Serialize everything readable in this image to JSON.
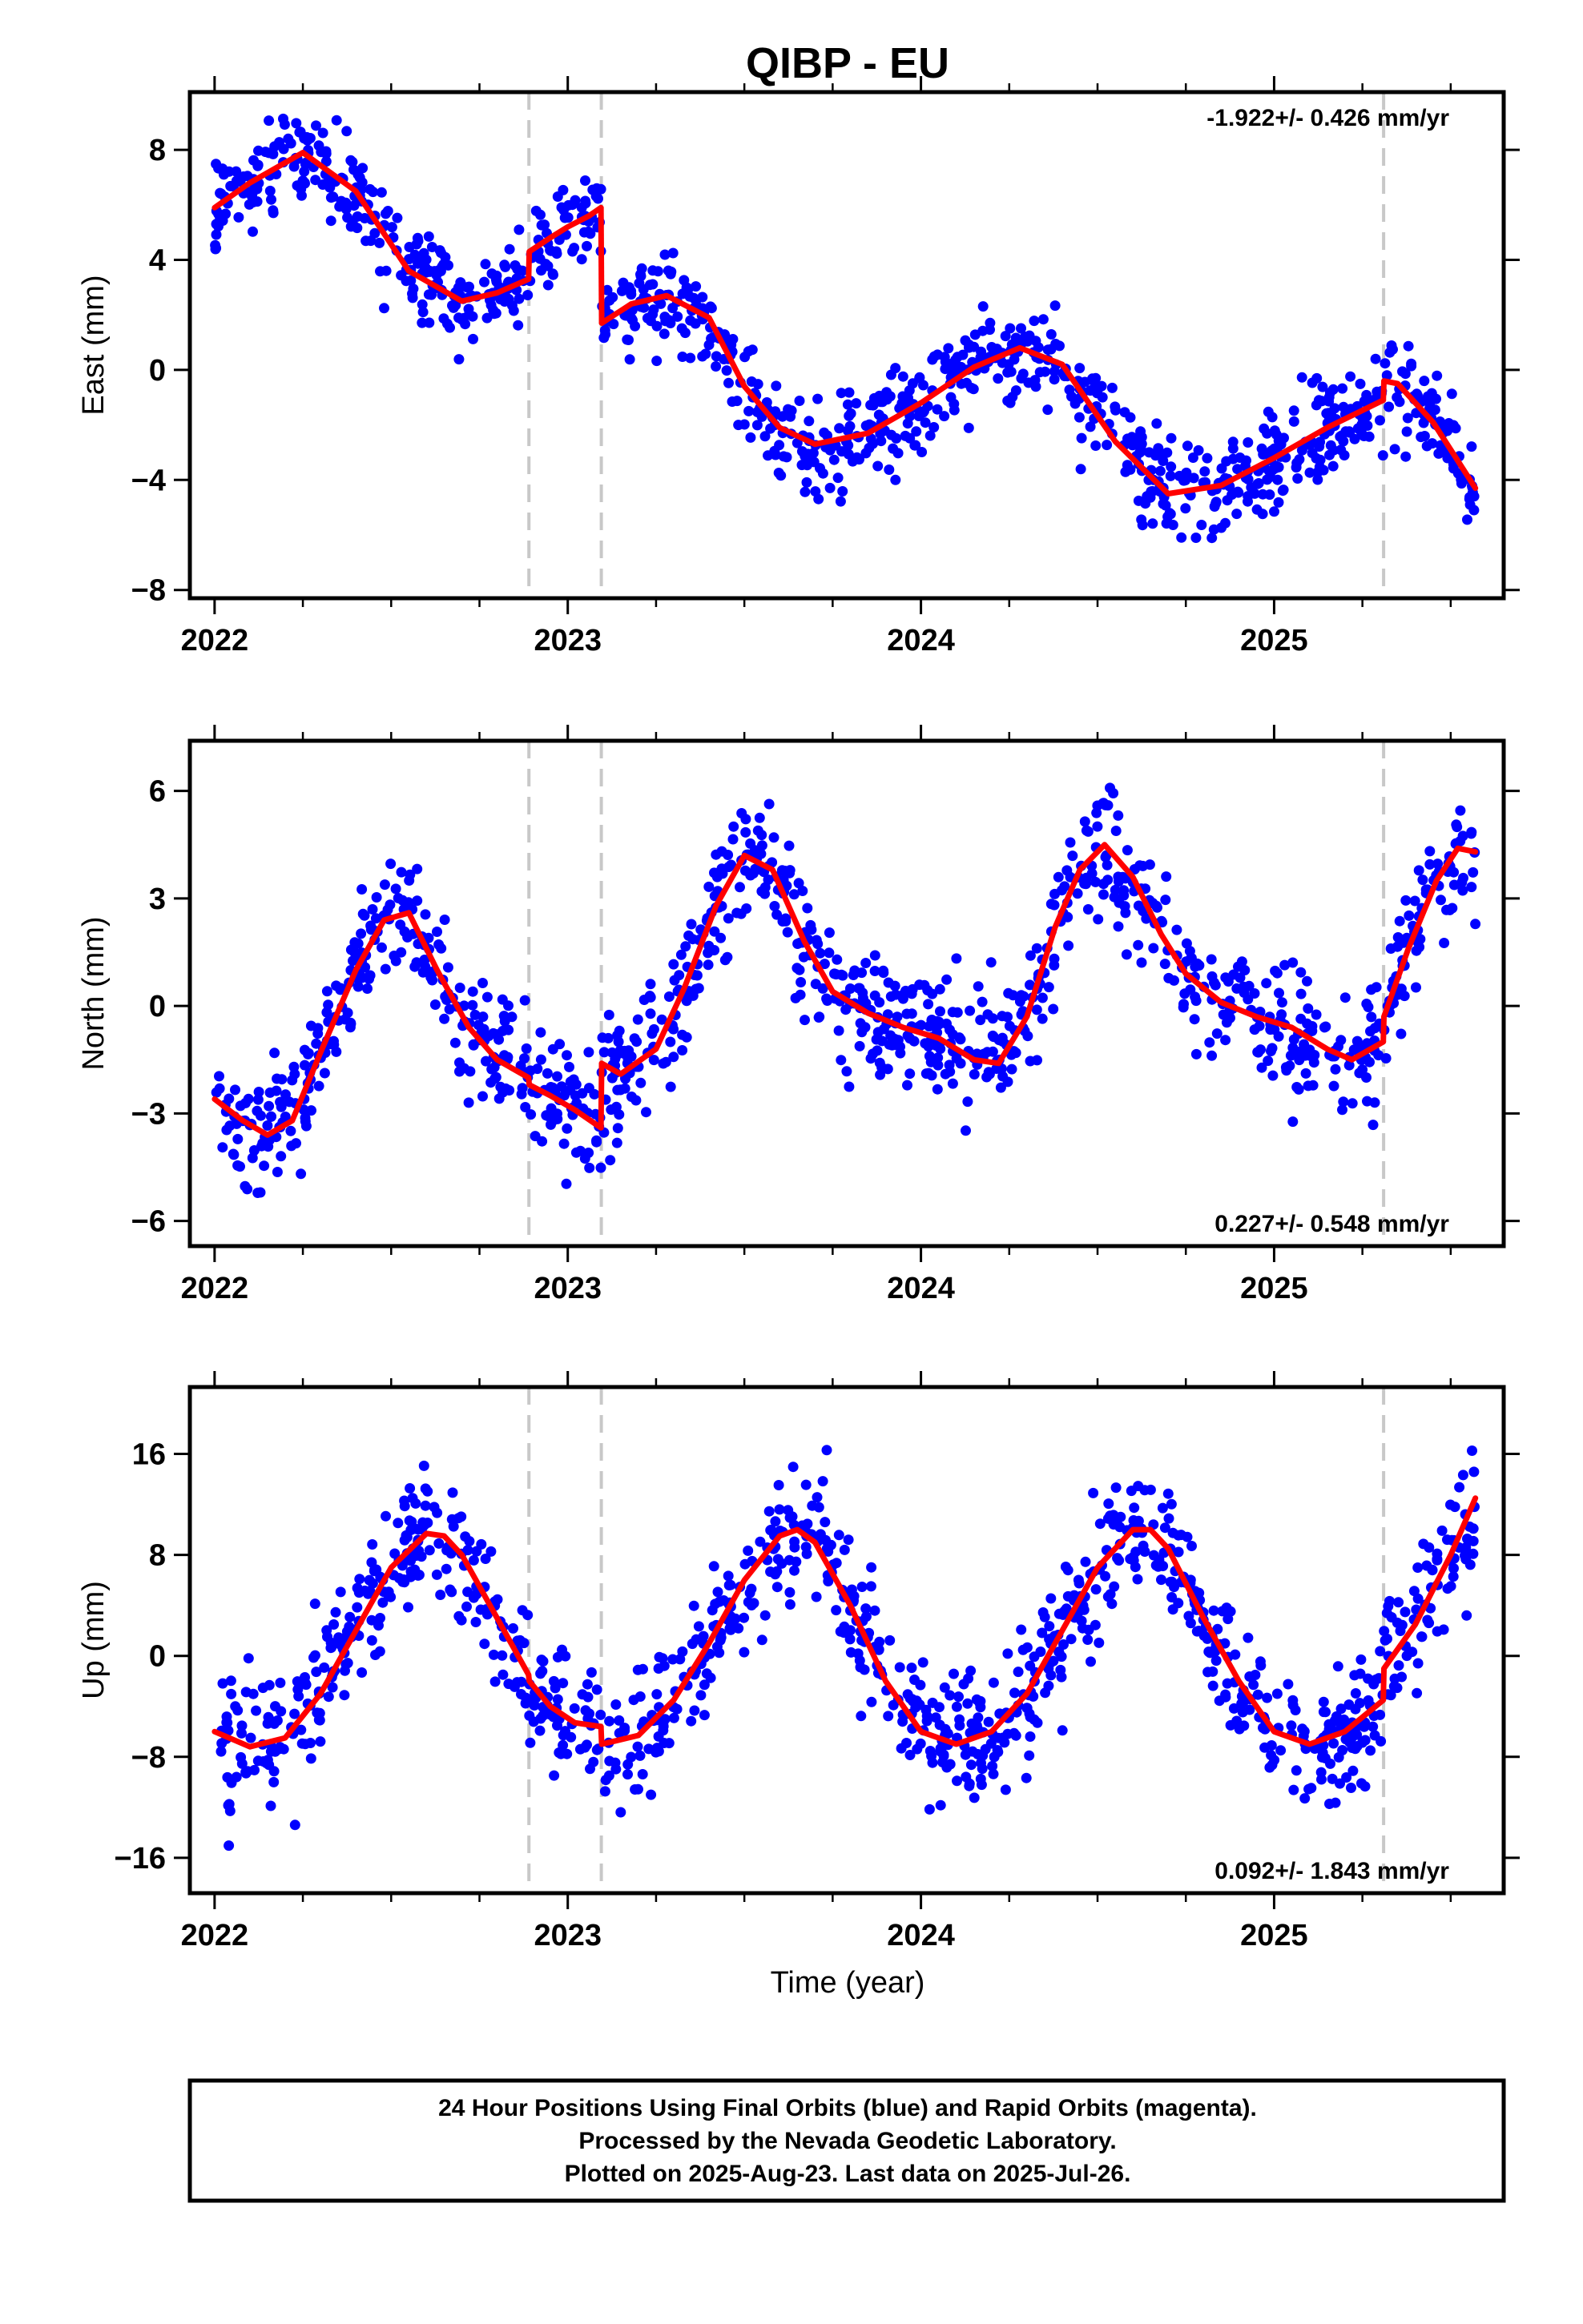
{
  "title": "QIBP - EU",
  "xlabel": "Time (year)",
  "colors": {
    "points": "#0000ff",
    "model": "#ff0000",
    "breaks": "#c8c8c8"
  },
  "breaks": [
    2022.89,
    2023.095,
    2025.31
  ],
  "footer": {
    "line1": "24 Hour Positions Using Final Orbits (blue) and Rapid Orbits (magenta).",
    "line2": "Processed by the Nevada Geodetic Laboratory.",
    "line3": "Plotted on 2025-Aug-23. Last data on 2025-Jul-26."
  },
  "chart_data": [
    {
      "type": "scatter",
      "component": "east",
      "ylabel": "East (mm)",
      "rate_label": "-1.922+/- 0.426 mm/yr",
      "rate_position": "top-right",
      "xlim": [
        2021.93,
        2025.65
      ],
      "ylim": [
        -8.3,
        10.1
      ],
      "xticks": [
        2022,
        2023,
        2024,
        2025
      ],
      "yticks": [
        -8,
        -4,
        0,
        4,
        8
      ],
      "series": [
        {
          "kind": "model",
          "x": [
            2022.0,
            2022.1,
            2022.25,
            2022.4,
            2022.55,
            2022.7,
            2022.8,
            2022.889
          ],
          "y": [
            5.9,
            6.8,
            7.9,
            6.5,
            3.6,
            2.5,
            2.8,
            3.3
          ]
        },
        {
          "kind": "model",
          "x": [
            2022.891,
            2022.95,
            2023.0,
            2023.06,
            2023.094
          ],
          "y": [
            4.3,
            4.8,
            5.2,
            5.6,
            5.9
          ]
        },
        {
          "kind": "model",
          "x": [
            2023.096,
            2023.18,
            2023.28,
            2023.4,
            2023.5,
            2023.6,
            2023.7,
            2023.85,
            2024.0,
            2024.15,
            2024.28,
            2024.4,
            2024.55,
            2024.7,
            2024.85,
            2025.0,
            2025.15,
            2025.309
          ],
          "y": [
            1.7,
            2.4,
            2.7,
            1.9,
            -0.6,
            -2.1,
            -2.7,
            -2.3,
            -1.2,
            0.1,
            0.8,
            0.2,
            -2.6,
            -4.5,
            -4.2,
            -3.2,
            -2.1,
            -1.1
          ]
        },
        {
          "kind": "model",
          "x": [
            2025.311,
            2025.35,
            2025.45,
            2025.57
          ],
          "y": [
            -0.4,
            -0.5,
            -1.9,
            -4.3
          ]
        }
      ]
    },
    {
      "type": "scatter",
      "component": "north",
      "ylabel": "North (mm)",
      "rate_label": "0.227+/- 0.548 mm/yr",
      "rate_position": "bottom-right",
      "xlim": [
        2021.93,
        2025.65
      ],
      "ylim": [
        -6.7,
        7.4
      ],
      "xticks": [
        2022,
        2023,
        2024,
        2025
      ],
      "yticks": [
        -6,
        -3,
        0,
        3,
        6
      ],
      "series": [
        {
          "kind": "model",
          "x": [
            2022.0,
            2022.08,
            2022.15,
            2022.22,
            2022.3,
            2022.4,
            2022.48,
            2022.55,
            2022.63,
            2022.72,
            2022.8,
            2022.889
          ],
          "y": [
            -2.6,
            -3.2,
            -3.6,
            -3.2,
            -1.3,
            1.0,
            2.4,
            2.6,
            1.0,
            -0.6,
            -1.5,
            -2.0
          ]
        },
        {
          "kind": "model",
          "x": [
            2022.891,
            2022.95,
            2023.02,
            2023.094
          ],
          "y": [
            -2.2,
            -2.5,
            -2.9,
            -3.4
          ]
        },
        {
          "kind": "model",
          "x": [
            2023.096,
            2023.15,
            2023.25,
            2023.33,
            2023.42,
            2023.5,
            2023.58,
            2023.67,
            2023.75,
            2023.85,
            2023.95,
            2024.05,
            2024.15,
            2024.22,
            2024.3,
            2024.38,
            2024.45,
            2024.52,
            2024.6,
            2024.68,
            2024.75,
            2024.85,
            2024.95,
            2025.05,
            2025.15,
            2025.22,
            2025.309
          ],
          "y": [
            -1.6,
            -1.9,
            -1.2,
            0.5,
            2.8,
            4.2,
            3.8,
            1.8,
            0.4,
            -0.2,
            -0.6,
            -0.9,
            -1.5,
            -1.6,
            -0.3,
            2.2,
            3.8,
            4.5,
            3.6,
            2.0,
            0.9,
            0.1,
            -0.3,
            -0.6,
            -1.2,
            -1.5,
            -1.0
          ]
        },
        {
          "kind": "model",
          "x": [
            2025.311,
            2025.38,
            2025.46,
            2025.52,
            2025.57
          ],
          "y": [
            -0.3,
            1.6,
            3.5,
            4.4,
            4.3
          ]
        }
      ]
    },
    {
      "type": "scatter",
      "component": "up",
      "ylabel": "Up (mm)",
      "rate_label": "0.092+/- 1.843 mm/yr",
      "rate_position": "bottom-right",
      "xlim": [
        2021.93,
        2025.65
      ],
      "ylim": [
        -18.8,
        21.3
      ],
      "xticks": [
        2022,
        2023,
        2024,
        2025
      ],
      "yticks": [
        -16,
        -8,
        0,
        8,
        16
      ],
      "series": [
        {
          "kind": "model",
          "x": [
            2022.0,
            2022.1,
            2022.2,
            2022.3,
            2022.4,
            2022.5,
            2022.6,
            2022.65,
            2022.7,
            2022.8,
            2022.889
          ],
          "y": [
            -6.0,
            -7.2,
            -6.5,
            -3.0,
            2.0,
            7.0,
            9.7,
            9.5,
            8.0,
            3.0,
            -1.5
          ]
        },
        {
          "kind": "model",
          "x": [
            2022.891,
            2022.95,
            2023.02,
            2023.094
          ],
          "y": [
            -2.0,
            -4.0,
            -5.3,
            -5.6
          ]
        },
        {
          "kind": "model",
          "x": [
            2023.096,
            2023.2,
            2023.3,
            2023.4,
            2023.5,
            2023.6,
            2023.65,
            2023.7,
            2023.8,
            2023.9,
            2024.0,
            2024.1,
            2024.2,
            2024.3,
            2024.4,
            2024.5,
            2024.6,
            2024.65,
            2024.7,
            2024.8,
            2024.9,
            2025.0,
            2025.1,
            2025.2,
            2025.309
          ],
          "y": [
            -7.0,
            -6.3,
            -3.5,
            1.0,
            6.0,
            9.5,
            10.0,
            9.0,
            4.0,
            -2.0,
            -6.0,
            -7.0,
            -6.0,
            -3.0,
            2.0,
            7.0,
            10.0,
            10.0,
            8.5,
            3.0,
            -2.0,
            -6.0,
            -7.0,
            -6.0,
            -3.5
          ]
        },
        {
          "kind": "model",
          "x": [
            2025.311,
            2025.4,
            2025.5,
            2025.57
          ],
          "y": [
            -1.0,
            2.5,
            8.0,
            12.5
          ]
        }
      ]
    }
  ]
}
